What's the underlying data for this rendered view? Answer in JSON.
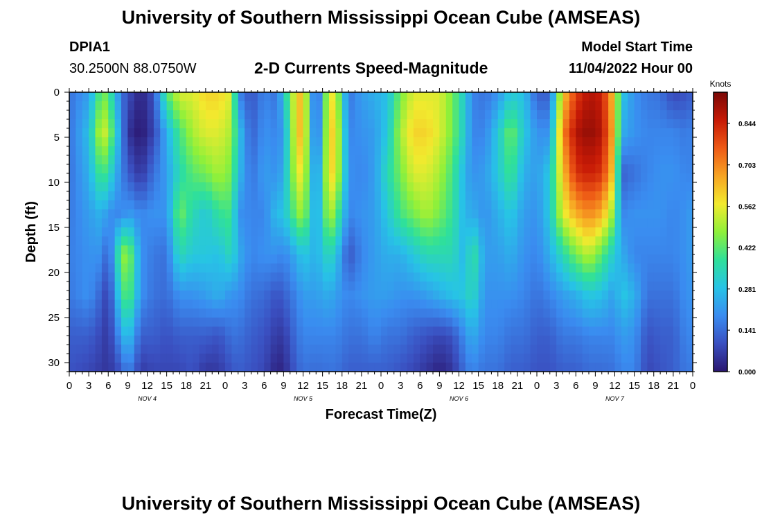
{
  "header": {
    "title": "University of Southern Mississippi Ocean Cube (AMSEAS)",
    "station": "DPIA1",
    "coords": "30.2500N  88.0750W",
    "chart_subtitle": "2-D Currents Speed-Magnitude",
    "model_start_label": "Model Start Time",
    "model_start_value": "11/04/2022 Hour 00"
  },
  "footer": {
    "title": "University of Southern Mississippi Ocean Cube (AMSEAS)"
  },
  "colors": {
    "scale": [
      "#2b1770",
      "#3a4fc0",
      "#3a8cf0",
      "#27c3e6",
      "#2fe09a",
      "#8ff03a",
      "#f2ea2e",
      "#f7a423",
      "#ee5a16",
      "#c71a06",
      "#7a0806"
    ]
  },
  "chart_data": {
    "type": "heatmap",
    "title": "2-D Currents Speed-Magnitude",
    "xlabel": "Forecast Time(Z)",
    "ylabel": "Depth (ft)",
    "xlim": [
      0,
      96
    ],
    "ylim": [
      0,
      31
    ],
    "x_ticks": [
      "0",
      "3",
      "6",
      "9",
      "12",
      "15",
      "18",
      "21",
      "0",
      "3",
      "6",
      "9",
      "12",
      "15",
      "18",
      "21",
      "0",
      "3",
      "6",
      "9",
      "12",
      "15",
      "18",
      "21",
      "0",
      "3",
      "6",
      "9",
      "12",
      "15",
      "18",
      "21",
      "0"
    ],
    "y_ticks": [
      "0",
      "5",
      "10",
      "15",
      "20",
      "25",
      "30"
    ],
    "y_tick_values": [
      0,
      5,
      10,
      15,
      20,
      25,
      30
    ],
    "day_labels": [
      {
        "label": "NOV 4",
        "hour": 12
      },
      {
        "label": "NOV 5",
        "hour": 36
      },
      {
        "label": "NOV 6",
        "hour": 60
      },
      {
        "label": "NOV 7",
        "hour": 84
      }
    ],
    "colorbar": {
      "unit": "Knots",
      "min": 0,
      "max": 0.95,
      "ticks": [
        "0.844",
        "0.703",
        "0.562",
        "0.422",
        "0.281",
        "0.141",
        "0.000"
      ],
      "tick_values": [
        0.844,
        0.703,
        0.562,
        0.422,
        0.281,
        0.141,
        0.0
      ]
    },
    "columns": [
      {
        "h": 0,
        "v": [
          0.15,
          0.15,
          0.15,
          0.16,
          0.17,
          0.16,
          0.12,
          0.1
        ]
      },
      {
        "h": 3,
        "v": [
          0.22,
          0.28,
          0.25,
          0.22,
          0.2,
          0.2,
          0.12,
          0.08
        ]
      },
      {
        "h": 5,
        "v": [
          0.45,
          0.55,
          0.42,
          0.26,
          0.2,
          0.12,
          0.08,
          0.06
        ]
      },
      {
        "h": 6,
        "v": [
          0.42,
          0.5,
          0.36,
          0.2,
          0.1,
          0.06,
          0.05,
          0.05
        ]
      },
      {
        "h": 8,
        "v": [
          0.15,
          0.2,
          0.18,
          0.18,
          0.45,
          0.35,
          0.22,
          0.1
        ]
      },
      {
        "h": 9,
        "v": [
          0.1,
          0.05,
          0.12,
          0.22,
          0.5,
          0.45,
          0.3,
          0.18
        ]
      },
      {
        "h": 11,
        "v": [
          0.02,
          0.0,
          0.05,
          0.18,
          0.2,
          0.2,
          0.12,
          0.06
        ]
      },
      {
        "h": 13,
        "v": [
          0.1,
          0.08,
          0.15,
          0.2,
          0.16,
          0.15,
          0.12,
          0.08
        ]
      },
      {
        "h": 15,
        "v": [
          0.42,
          0.25,
          0.22,
          0.2,
          0.15,
          0.14,
          0.1,
          0.08
        ]
      },
      {
        "h": 17,
        "v": [
          0.55,
          0.4,
          0.35,
          0.45,
          0.35,
          0.2,
          0.12,
          0.08
        ]
      },
      {
        "h": 19,
        "v": [
          0.55,
          0.5,
          0.42,
          0.35,
          0.3,
          0.2,
          0.12,
          0.1
        ]
      },
      {
        "h": 21,
        "v": [
          0.6,
          0.55,
          0.45,
          0.3,
          0.3,
          0.22,
          0.12,
          0.05
        ]
      },
      {
        "h": 23,
        "v": [
          0.6,
          0.55,
          0.5,
          0.38,
          0.28,
          0.25,
          0.1,
          0.06
        ]
      },
      {
        "h": 25,
        "v": [
          0.55,
          0.5,
          0.45,
          0.4,
          0.35,
          0.2,
          0.15,
          0.1
        ]
      },
      {
        "h": 26,
        "v": [
          0.18,
          0.3,
          0.28,
          0.2,
          0.25,
          0.2,
          0.15,
          0.12
        ]
      },
      {
        "h": 28,
        "v": [
          0.1,
          0.12,
          0.15,
          0.18,
          0.18,
          0.15,
          0.12,
          0.1
        ]
      },
      {
        "h": 30,
        "v": [
          0.18,
          0.2,
          0.22,
          0.18,
          0.2,
          0.14,
          0.1,
          0.08
        ]
      },
      {
        "h": 32,
        "v": [
          0.15,
          0.18,
          0.2,
          0.28,
          0.2,
          0.1,
          0.06,
          0.02
        ]
      },
      {
        "h": 33,
        "v": [
          0.3,
          0.22,
          0.25,
          0.28,
          0.18,
          0.12,
          0.06,
          0.03
        ]
      },
      {
        "h": 35,
        "v": [
          0.6,
          0.6,
          0.55,
          0.45,
          0.25,
          0.18,
          0.15,
          0.12
        ]
      },
      {
        "h": 36,
        "v": [
          0.65,
          0.65,
          0.58,
          0.5,
          0.3,
          0.22,
          0.18,
          0.15
        ]
      },
      {
        "h": 38,
        "v": [
          0.05,
          0.08,
          0.15,
          0.2,
          0.25,
          0.22,
          0.18,
          0.14
        ]
      },
      {
        "h": 40,
        "v": [
          0.58,
          0.6,
          0.6,
          0.52,
          0.35,
          0.25,
          0.18,
          0.15
        ]
      },
      {
        "h": 41,
        "v": [
          0.55,
          0.6,
          0.58,
          0.45,
          0.3,
          0.22,
          0.18,
          0.15
        ]
      },
      {
        "h": 43,
        "v": [
          0.15,
          0.18,
          0.2,
          0.18,
          0.1,
          0.18,
          0.15,
          0.12
        ]
      },
      {
        "h": 45,
        "v": [
          0.22,
          0.2,
          0.18,
          0.2,
          0.18,
          0.2,
          0.15,
          0.12
        ]
      },
      {
        "h": 47,
        "v": [
          0.25,
          0.22,
          0.22,
          0.22,
          0.22,
          0.22,
          0.18,
          0.12
        ]
      },
      {
        "h": 49,
        "v": [
          0.28,
          0.3,
          0.35,
          0.3,
          0.25,
          0.22,
          0.15,
          0.12
        ]
      },
      {
        "h": 51,
        "v": [
          0.45,
          0.5,
          0.45,
          0.4,
          0.25,
          0.2,
          0.15,
          0.1
        ]
      },
      {
        "h": 53,
        "v": [
          0.55,
          0.6,
          0.55,
          0.45,
          0.3,
          0.2,
          0.12,
          0.08
        ]
      },
      {
        "h": 55,
        "v": [
          0.55,
          0.6,
          0.55,
          0.5,
          0.35,
          0.22,
          0.1,
          0.05
        ]
      },
      {
        "h": 57,
        "v": [
          0.55,
          0.55,
          0.5,
          0.45,
          0.35,
          0.25,
          0.08,
          0.02
        ]
      },
      {
        "h": 59,
        "v": [
          0.45,
          0.45,
          0.4,
          0.38,
          0.35,
          0.28,
          0.1,
          0.05
        ]
      },
      {
        "h": 61,
        "v": [
          0.3,
          0.3,
          0.25,
          0.25,
          0.25,
          0.3,
          0.2,
          0.15
        ]
      },
      {
        "h": 62,
        "v": [
          0.18,
          0.18,
          0.2,
          0.25,
          0.4,
          0.35,
          0.25,
          0.18
        ]
      },
      {
        "h": 64,
        "v": [
          0.15,
          0.18,
          0.22,
          0.2,
          0.22,
          0.2,
          0.18,
          0.15
        ]
      },
      {
        "h": 66,
        "v": [
          0.2,
          0.3,
          0.3,
          0.25,
          0.22,
          0.2,
          0.18,
          0.15
        ]
      },
      {
        "h": 68,
        "v": [
          0.3,
          0.45,
          0.4,
          0.3,
          0.25,
          0.2,
          0.15,
          0.12
        ]
      },
      {
        "h": 70,
        "v": [
          0.28,
          0.3,
          0.25,
          0.22,
          0.2,
          0.18,
          0.15,
          0.12
        ]
      },
      {
        "h": 72,
        "v": [
          0.12,
          0.2,
          0.22,
          0.2,
          0.18,
          0.15,
          0.12,
          0.1
        ]
      },
      {
        "h": 74,
        "v": [
          0.12,
          0.2,
          0.3,
          0.3,
          0.25,
          0.18,
          0.12,
          0.1
        ]
      },
      {
        "h": 76,
        "v": [
          0.6,
          0.7,
          0.62,
          0.55,
          0.35,
          0.22,
          0.16,
          0.12
        ]
      },
      {
        "h": 78,
        "v": [
          0.8,
          0.88,
          0.82,
          0.65,
          0.45,
          0.25,
          0.16,
          0.12
        ]
      },
      {
        "h": 80,
        "v": [
          0.88,
          0.92,
          0.85,
          0.7,
          0.52,
          0.3,
          0.18,
          0.14
        ]
      },
      {
        "h": 82,
        "v": [
          0.85,
          0.88,
          0.82,
          0.65,
          0.42,
          0.28,
          0.18,
          0.14
        ]
      },
      {
        "h": 84,
        "v": [
          0.6,
          0.62,
          0.58,
          0.45,
          0.3,
          0.22,
          0.18,
          0.15
        ]
      },
      {
        "h": 85,
        "v": [
          0.3,
          0.25,
          0.12,
          0.18,
          0.25,
          0.3,
          0.22,
          0.18
        ]
      },
      {
        "h": 87,
        "v": [
          0.2,
          0.2,
          0.15,
          0.2,
          0.18,
          0.25,
          0.2,
          0.18
        ]
      },
      {
        "h": 89,
        "v": [
          0.16,
          0.18,
          0.18,
          0.2,
          0.18,
          0.15,
          0.1,
          0.08
        ]
      },
      {
        "h": 91,
        "v": [
          0.15,
          0.18,
          0.2,
          0.2,
          0.18,
          0.15,
          0.12,
          0.1
        ]
      },
      {
        "h": 93,
        "v": [
          0.08,
          0.18,
          0.2,
          0.18,
          0.18,
          0.15,
          0.12,
          0.12
        ]
      },
      {
        "h": 95,
        "v": [
          0.1,
          0.16,
          0.18,
          0.2,
          0.2,
          0.2,
          0.18,
          0.16
        ]
      },
      {
        "h": 96,
        "v": [
          0.12,
          0.18,
          0.18,
          0.22,
          0.22,
          0.2,
          0.18,
          0.16
        ]
      }
    ],
    "depth_levels": [
      0,
      4.5,
      9,
      13.5,
      18,
      22.5,
      27,
      31
    ]
  }
}
